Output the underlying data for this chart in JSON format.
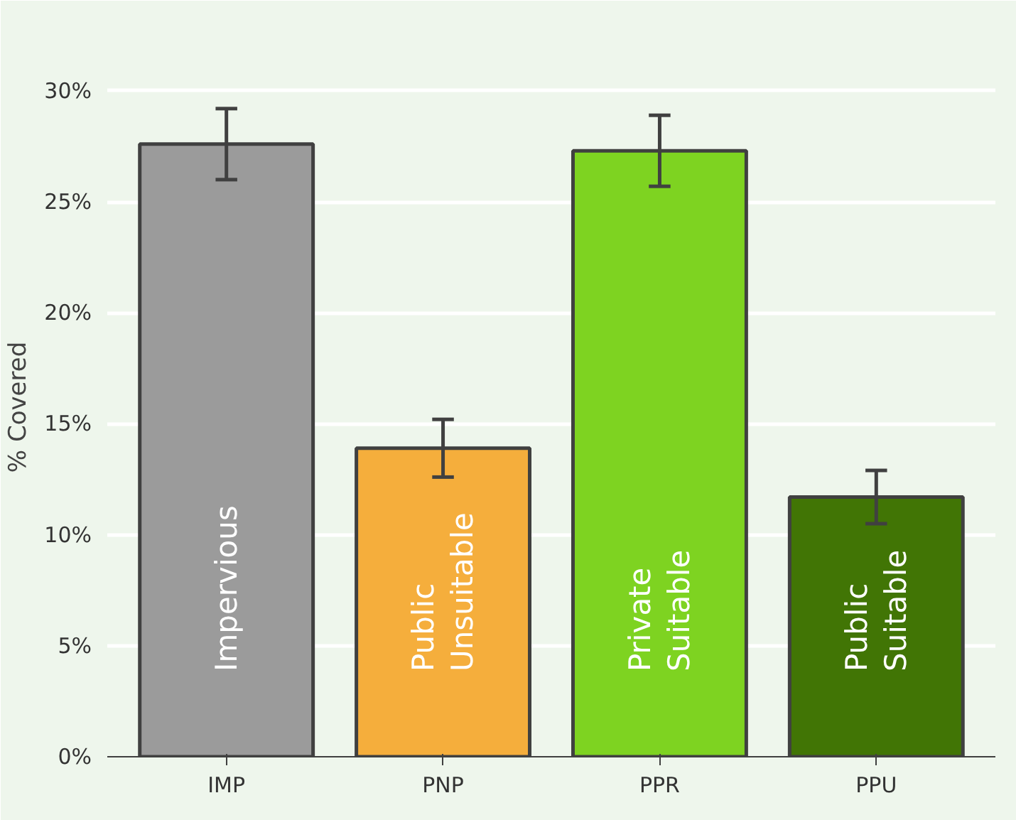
{
  "chart_data": {
    "type": "bar",
    "ylabel": "% Covered",
    "categories": [
      "IMP",
      "PNP",
      "PPR",
      "PPU"
    ],
    "values": [
      27.6,
      13.9,
      27.3,
      11.7
    ],
    "errors": [
      1.6,
      1.3,
      1.6,
      1.2
    ],
    "colors": [
      "#9b9b9b",
      "#f5ae3c",
      "#7ed321",
      "#417505"
    ],
    "ylim": [
      0,
      31.5
    ],
    "yticks": [
      {
        "value": 0,
        "label": "0%"
      },
      {
        "value": 5,
        "label": "5%"
      },
      {
        "value": 10,
        "label": "10%"
      },
      {
        "value": 15,
        "label": "15%"
      },
      {
        "value": 20,
        "label": "20%"
      },
      {
        "value": 25,
        "label": "25%"
      },
      {
        "value": 30,
        "label": "30%"
      }
    ],
    "grid": "y",
    "annotations": [
      "Impervious",
      "Public\nUnsuitable",
      "Private\nSuitable",
      "Public\nSuitable"
    ]
  }
}
